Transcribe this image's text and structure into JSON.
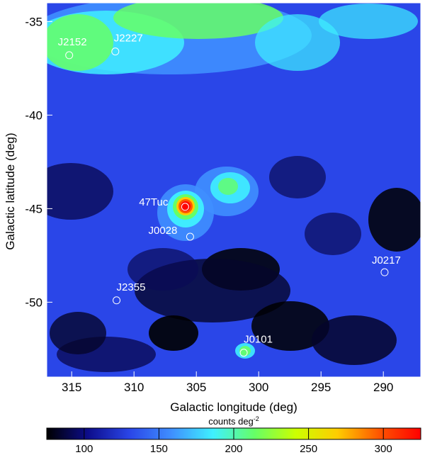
{
  "chart_data": {
    "type": "heatmap",
    "xlabel": "Galactic longitude (deg)",
    "ylabel": "Galactic latitude (deg)",
    "xlim": [
      317,
      287
    ],
    "ylim": [
      -54,
      -34
    ],
    "xticks": [
      315,
      310,
      305,
      300,
      295,
      290
    ],
    "yticks": [
      -35,
      -40,
      -45,
      -50
    ],
    "colorbar": {
      "title": "counts deg",
      "title_superscript": "-2",
      "range": [
        75,
        325
      ],
      "ticks": [
        100,
        150,
        200,
        250,
        300
      ],
      "colors": [
        "#000000",
        "#0d0d8c",
        "#2a46e8",
        "#3f8fff",
        "#3ff0ff",
        "#66ff66",
        "#ccff00",
        "#ffcc00",
        "#ff5500",
        "#ff0000"
      ]
    },
    "sources": [
      {
        "name": "J2152",
        "l": 315.2,
        "b": -36.8
      },
      {
        "name": "J2227",
        "l": 311.5,
        "b": -36.6
      },
      {
        "name": "47Tuc",
        "l": 305.9,
        "b": -44.9
      },
      {
        "name": "J0028",
        "l": 305.5,
        "b": -46.5
      },
      {
        "name": "J0217",
        "l": 289.9,
        "b": -48.4
      },
      {
        "name": "J2355",
        "l": 311.4,
        "b": -49.9
      },
      {
        "name": "J0101",
        "l": 301.2,
        "b": -52.7
      }
    ],
    "features": [
      {
        "name": "47Tuc core",
        "l": 306.0,
        "b": -44.9,
        "peak": 325
      },
      {
        "name": "extended blob",
        "l": 301.5,
        "b": -43.5,
        "peak": 185
      },
      {
        "name": "J0101 blob",
        "l": 301.2,
        "b": -52.6,
        "peak": 185
      },
      {
        "name": "north diffuse",
        "l": 306.0,
        "b": -35.5,
        "peak": 215
      }
    ]
  }
}
